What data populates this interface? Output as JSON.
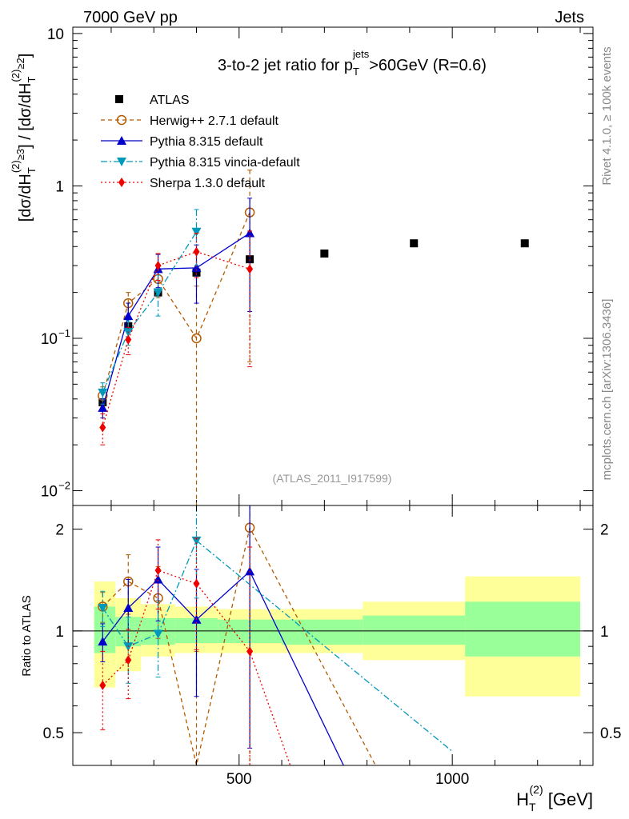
{
  "header": {
    "left": "7000 GeV pp",
    "right": "Jets"
  },
  "side": {
    "rivet": "Rivet 4.1.0, ≥ 100k events",
    "mcplots": "mcplots.cern.ch [arXiv:1306.3436]"
  },
  "chart_data": {
    "type": "scatter",
    "title": "3-to-2 jet ratio for p_T^jets >60GeV (R=0.6)",
    "title_parts": {
      "pre": "3-to-2 jet ratio for p",
      "sub": "T",
      "sup": "jets",
      "post": ">60GeV (R=0.6)"
    },
    "analysis_id": "(ATLAS_2011_I917599)",
    "xlabel": {
      "main": "H",
      "sub": "T",
      "sup": "(2)",
      "unit": " [GeV]"
    },
    "ylabel": {
      "text": "[dσ/dH_T^(2)]^≥3 / [dσ/dH_T^(2)]^≥2",
      "p1": "[dσ/dH",
      "sub": "T",
      "sup1": "(2)",
      "sup2": "≥3",
      "p2": "] / [dσ/dH",
      "sup3": "(2)",
      "sup4": "≥2",
      "p3": "]"
    },
    "ratio_ylabel": "Ratio to ATLAS",
    "xlim": [
      110,
      1330
    ],
    "ylim": [
      0.008,
      11
    ],
    "ratio_ylim": [
      0.4,
      2.35
    ],
    "x_ticks": [
      {
        "v": 500,
        "label": "500"
      },
      {
        "v": 1000,
        "label": "1000"
      }
    ],
    "y_ticks": [
      {
        "v": 0.01,
        "base": "10",
        "exp": "−2"
      },
      {
        "v": 0.1,
        "base": "10",
        "exp": "−1"
      },
      {
        "v": 1,
        "base": "1",
        "exp": ""
      },
      {
        "v": 10,
        "base": "10",
        "exp": ""
      }
    ],
    "ratio_ticks": [
      {
        "v": 0.5,
        "label": "0.5"
      },
      {
        "v": 1,
        "label": "1"
      },
      {
        "v": 2,
        "label": "2"
      }
    ],
    "reference": {
      "name": "ATLAS",
      "color": "#000000",
      "x": [
        180,
        240,
        310,
        400,
        525,
        700,
        910,
        1170
      ],
      "x_low": [
        160,
        210,
        270,
        350,
        450,
        600,
        790,
        1030
      ],
      "x_high": [
        210,
        270,
        350,
        450,
        600,
        790,
        1030,
        1300
      ],
      "y": [
        0.038,
        0.12,
        0.2,
        0.27,
        0.33,
        0.36,
        0.42,
        0.42
      ],
      "band_yellow": [
        [
          0.68,
          1.4
        ],
        [
          0.76,
          1.25
        ],
        [
          0.84,
          1.2
        ],
        [
          0.86,
          1.18
        ],
        [
          0.86,
          1.16
        ],
        [
          0.86,
          1.16
        ],
        [
          0.82,
          1.22
        ],
        [
          0.64,
          1.45
        ]
      ],
      "band_green": [
        [
          0.86,
          1.18
        ],
        [
          0.9,
          1.1
        ],
        [
          0.91,
          1.09
        ],
        [
          0.92,
          1.09
        ],
        [
          0.92,
          1.08
        ],
        [
          0.91,
          1.08
        ],
        [
          0.91,
          1.11
        ],
        [
          0.84,
          1.22
        ]
      ]
    },
    "series": [
      {
        "name": "Herwig++ 2.7.1 default",
        "color": "#b35a00",
        "dash": "5,4",
        "marker": "circle_open",
        "x": [
          180,
          240,
          310,
          400,
          525
        ],
        "y": [
          0.042,
          0.17,
          0.245,
          0.1,
          0.67
        ],
        "y_err": [
          0.006,
          0.03,
          0.06,
          0.12,
          0.6
        ],
        "ratio": [
          1.18,
          1.4,
          1.25,
          0.37,
          2.02
        ],
        "ratio_err": [
          0.12,
          0.28,
          0.3,
          0.5,
          1.8
        ],
        "ratio_tail": [
          [
            820,
            0.4
          ]
        ]
      },
      {
        "name": "Pythia 8.315 default",
        "color": "#0000cc",
        "dash": "",
        "marker": "triangle_up",
        "x": [
          180,
          240,
          310,
          400,
          525
        ],
        "y": [
          0.035,
          0.14,
          0.285,
          0.29,
          0.49
        ],
        "y_err": [
          0.005,
          0.03,
          0.07,
          0.12,
          0.34
        ],
        "ratio": [
          0.93,
          1.17,
          1.42,
          1.08,
          1.5
        ],
        "ratio_err": [
          0.12,
          0.25,
          0.35,
          0.44,
          1.05
        ],
        "ratio_tail": [
          [
            745,
            0.4
          ]
        ]
      },
      {
        "name": "Pythia 8.315 vincia-default",
        "color": "#0099bb",
        "dash": "8,3,2,3",
        "marker": "triangle_down",
        "x": [
          180,
          240,
          310,
          400,
          525
        ],
        "y": [
          0.044,
          0.11,
          0.2,
          0.5,
          0.0
        ],
        "y_err": [
          0.007,
          0.02,
          0.06,
          0.2,
          0.0
        ],
        "ratio": [
          1.17,
          0.9,
          0.98,
          1.85,
          null
        ],
        "ratio_err": [
          0.14,
          0.2,
          0.25,
          0.6,
          0
        ],
        "ratio_tail": [
          [
            1000,
            0.44
          ]
        ]
      },
      {
        "name": "Sherpa 1.3.0 default",
        "color": "#ee0000",
        "dash": "2,3",
        "marker": "diamond",
        "x": [
          180,
          240,
          310,
          400,
          525
        ],
        "y": [
          0.026,
          0.098,
          0.3,
          0.37,
          0.285
        ],
        "y_err": [
          0.006,
          0.02,
          0.06,
          0.12,
          0.22
        ],
        "ratio": [
          0.69,
          0.82,
          1.51,
          1.38,
          0.87
        ],
        "ratio_err": [
          0.18,
          0.19,
          0.35,
          0.5,
          0.9
        ],
        "ratio_tail": [
          [
            620,
            0.4
          ]
        ]
      }
    ]
  }
}
